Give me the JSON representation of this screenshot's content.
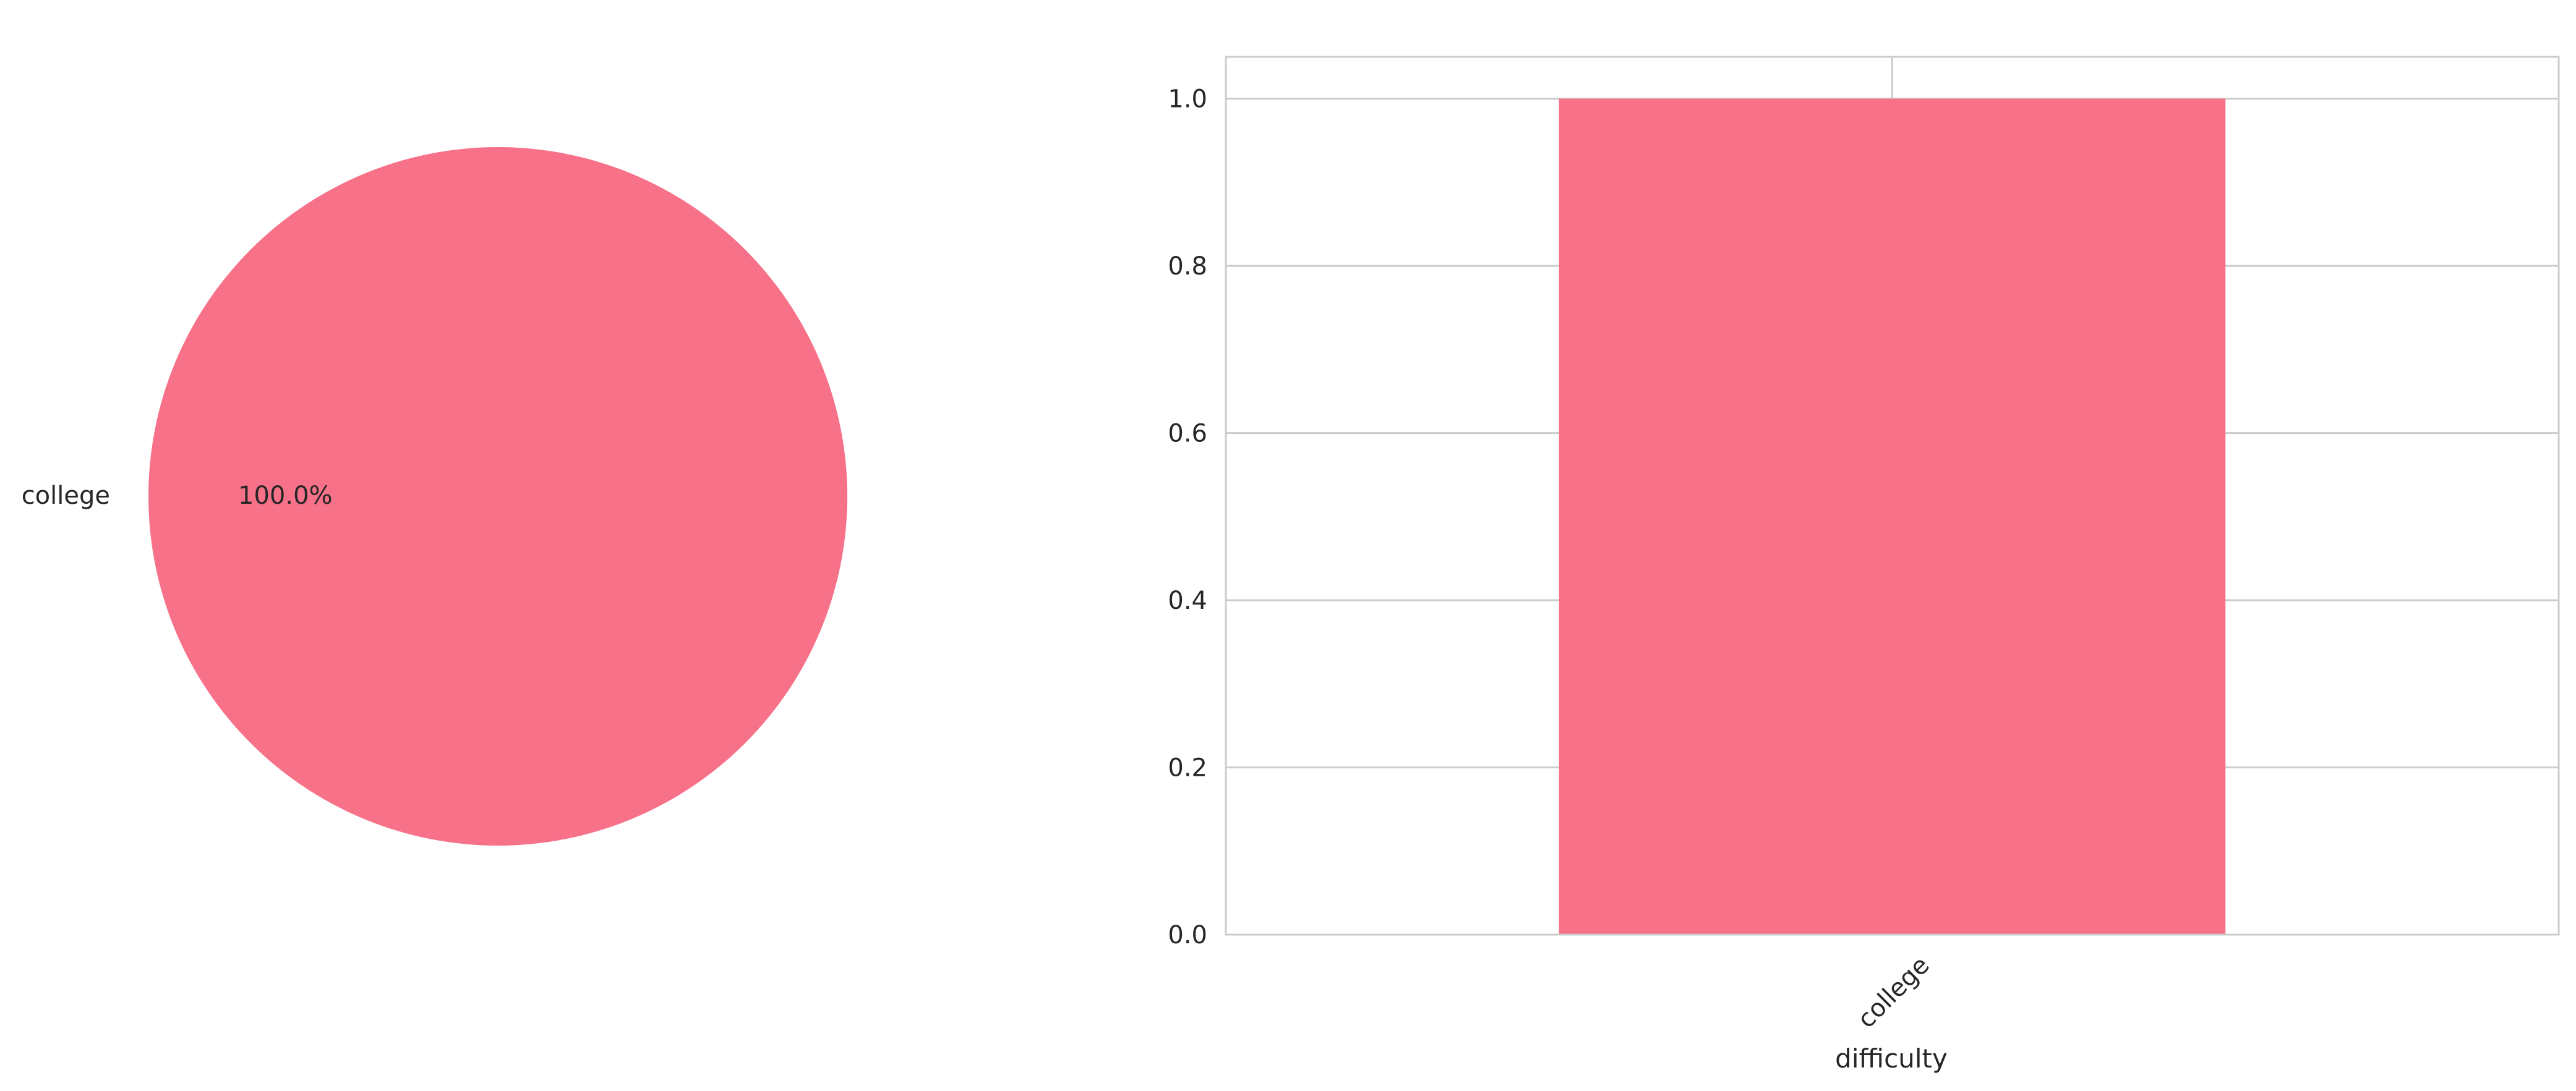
{
  "chart_data": [
    {
      "type": "pie",
      "title": "",
      "labels": [
        "college"
      ],
      "values": [
        100.0
      ],
      "value_labels": [
        "100.0%"
      ],
      "colors": [
        "#f77189"
      ]
    },
    {
      "type": "bar",
      "title": "",
      "categories": [
        "college"
      ],
      "values": [
        1.0
      ],
      "xlabel": "difficulty",
      "ylabel": "",
      "ylim": [
        0,
        1.05
      ],
      "yticks": [
        "0.0",
        "0.2",
        "0.4",
        "0.6",
        "0.8",
        "1.0"
      ],
      "grid": true,
      "colors": [
        "#f77189"
      ]
    }
  ]
}
